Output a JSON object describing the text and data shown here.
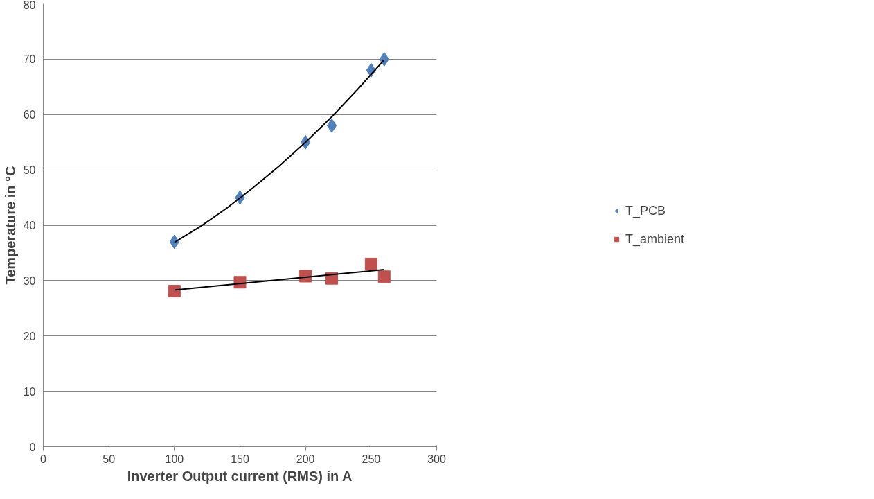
{
  "chart_data": {
    "type": "scatter",
    "xlabel": "Inverter Output current (RMS) in A",
    "ylabel": "Temperature in °C",
    "xlim": [
      0,
      300
    ],
    "xticks": [
      0,
      50,
      100,
      150,
      200,
      250,
      300
    ],
    "ylim": [
      0,
      80
    ],
    "yticks": [
      0,
      10,
      20,
      30,
      40,
      50,
      60,
      70,
      80
    ],
    "grid": "y",
    "legend": "right",
    "series": [
      {
        "name": "T_PCB",
        "color": "#4f81bd",
        "marker": "diamond",
        "x": [
          100,
          150,
          200,
          220,
          250,
          260
        ],
        "values": [
          37,
          45,
          55,
          58,
          68,
          70
        ]
      },
      {
        "name": "T_ambient",
        "color": "#c0504d",
        "marker": "square",
        "x": [
          100,
          150,
          200,
          220,
          250,
          260
        ],
        "values": [
          28.1,
          29.7,
          30.8,
          30.4,
          33,
          30.7
        ]
      },
      {
        "type": "line",
        "color": "#000000",
        "marker": "none",
        "x": [
          100,
          120,
          140,
          160,
          180,
          200,
          220,
          240,
          260
        ],
        "values": [
          36.9,
          39.8,
          43.1,
          46.8,
          50.7,
          55.0,
          59.6,
          64.6,
          69.9
        ]
      },
      {
        "type": "line",
        "color": "#000000",
        "marker": "none",
        "x": [
          100,
          260
        ],
        "values": [
          28.3,
          32.0
        ]
      }
    ]
  }
}
